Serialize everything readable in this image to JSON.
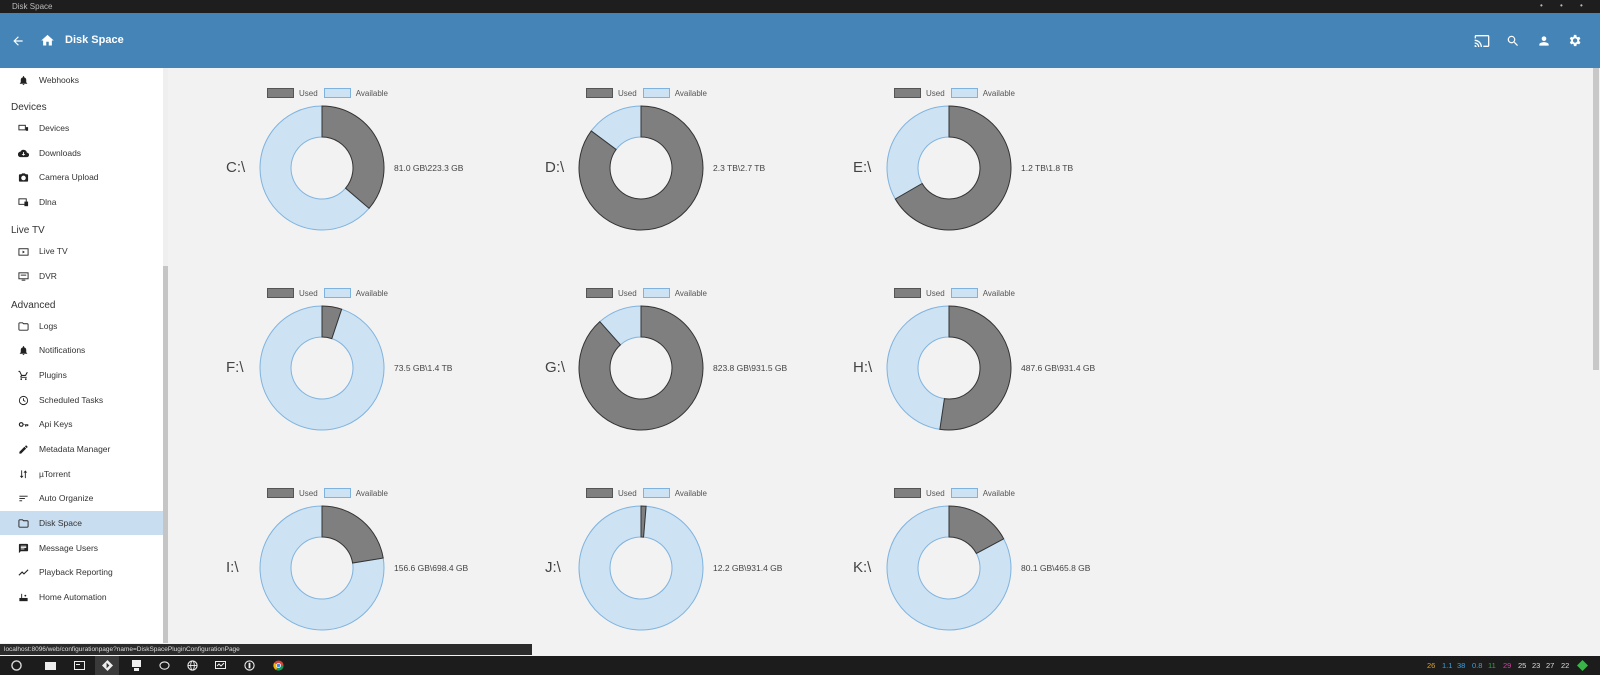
{
  "window": {
    "title": "Disk Space"
  },
  "header": {
    "title": "Disk Space"
  },
  "sidebar": {
    "top_item": "Webhooks",
    "sections": {
      "devices": "Devices",
      "live_tv": "Live TV",
      "advanced": "Advanced"
    },
    "items": [
      {
        "label": "Devices",
        "icon": "devices-icon"
      },
      {
        "label": "Downloads",
        "icon": "cloud-download-icon"
      },
      {
        "label": "Camera Upload",
        "icon": "camera-icon"
      },
      {
        "label": "Dlna",
        "icon": "dlna-icon"
      },
      {
        "label": "Live TV",
        "icon": "live-tv-icon"
      },
      {
        "label": "DVR",
        "icon": "dvr-icon"
      },
      {
        "label": "Logs",
        "icon": "folder-icon"
      },
      {
        "label": "Notifications",
        "icon": "bell-icon"
      },
      {
        "label": "Plugins",
        "icon": "cart-icon"
      },
      {
        "label": "Scheduled Tasks",
        "icon": "clock-icon"
      },
      {
        "label": "Api Keys",
        "icon": "key-icon"
      },
      {
        "label": "Metadata Manager",
        "icon": "pencil-icon"
      },
      {
        "label": "µTorrent",
        "icon": "sort-arrows-icon"
      },
      {
        "label": "Auto Organize",
        "icon": "sort-lines-icon"
      },
      {
        "label": "Disk Space",
        "icon": "folder-icon",
        "active": true
      },
      {
        "label": "Message Users",
        "icon": "message-icon"
      },
      {
        "label": "Playback Reporting",
        "icon": "trend-icon"
      },
      {
        "label": "Home Automation",
        "icon": "router-icon"
      }
    ]
  },
  "legend": {
    "used": "Used",
    "available": "Available"
  },
  "colors": {
    "header": "#4584b6",
    "used": "#7f7f7f",
    "available": "#cde2f2",
    "available_border": "#7fb3df",
    "active_item": "#c9ddf0"
  },
  "drives": [
    {
      "label": "C:\\",
      "used_text": "81.0 GB\\223.3 GB",
      "used": 81.0,
      "total": 223.3
    },
    {
      "label": "D:\\",
      "used_text": "2.3 TB\\2.7 TB",
      "used": 2.3,
      "total": 2.7
    },
    {
      "label": "E:\\",
      "used_text": "1.2 TB\\1.8 TB",
      "used": 1.2,
      "total": 1.8
    },
    {
      "label": "F:\\",
      "used_text": "73.5 GB\\1.4 TB",
      "used": 73.5,
      "total": 1433.6
    },
    {
      "label": "G:\\",
      "used_text": "823.8 GB\\931.5 GB",
      "used": 823.8,
      "total": 931.5
    },
    {
      "label": "H:\\",
      "used_text": "487.6 GB\\931.4 GB",
      "used": 487.6,
      "total": 931.4
    },
    {
      "label": "I:\\",
      "used_text": "156.6 GB\\698.4 GB",
      "used": 156.6,
      "total": 698.4
    },
    {
      "label": "J:\\",
      "used_text": "12.2 GB\\931.4 GB",
      "used": 12.2,
      "total": 931.4
    },
    {
      "label": "K:\\",
      "used_text": "80.1 GB\\465.8 GB",
      "used": 80.1,
      "total": 465.8
    }
  ],
  "status_url": "localhost:8096/web/configurationpage?name=DiskSpacePluginConfigurationPage",
  "tray": [
    "26",
    "1.1",
    "38",
    "0.8",
    "11",
    "29",
    "25",
    "23",
    "27",
    "22"
  ]
}
